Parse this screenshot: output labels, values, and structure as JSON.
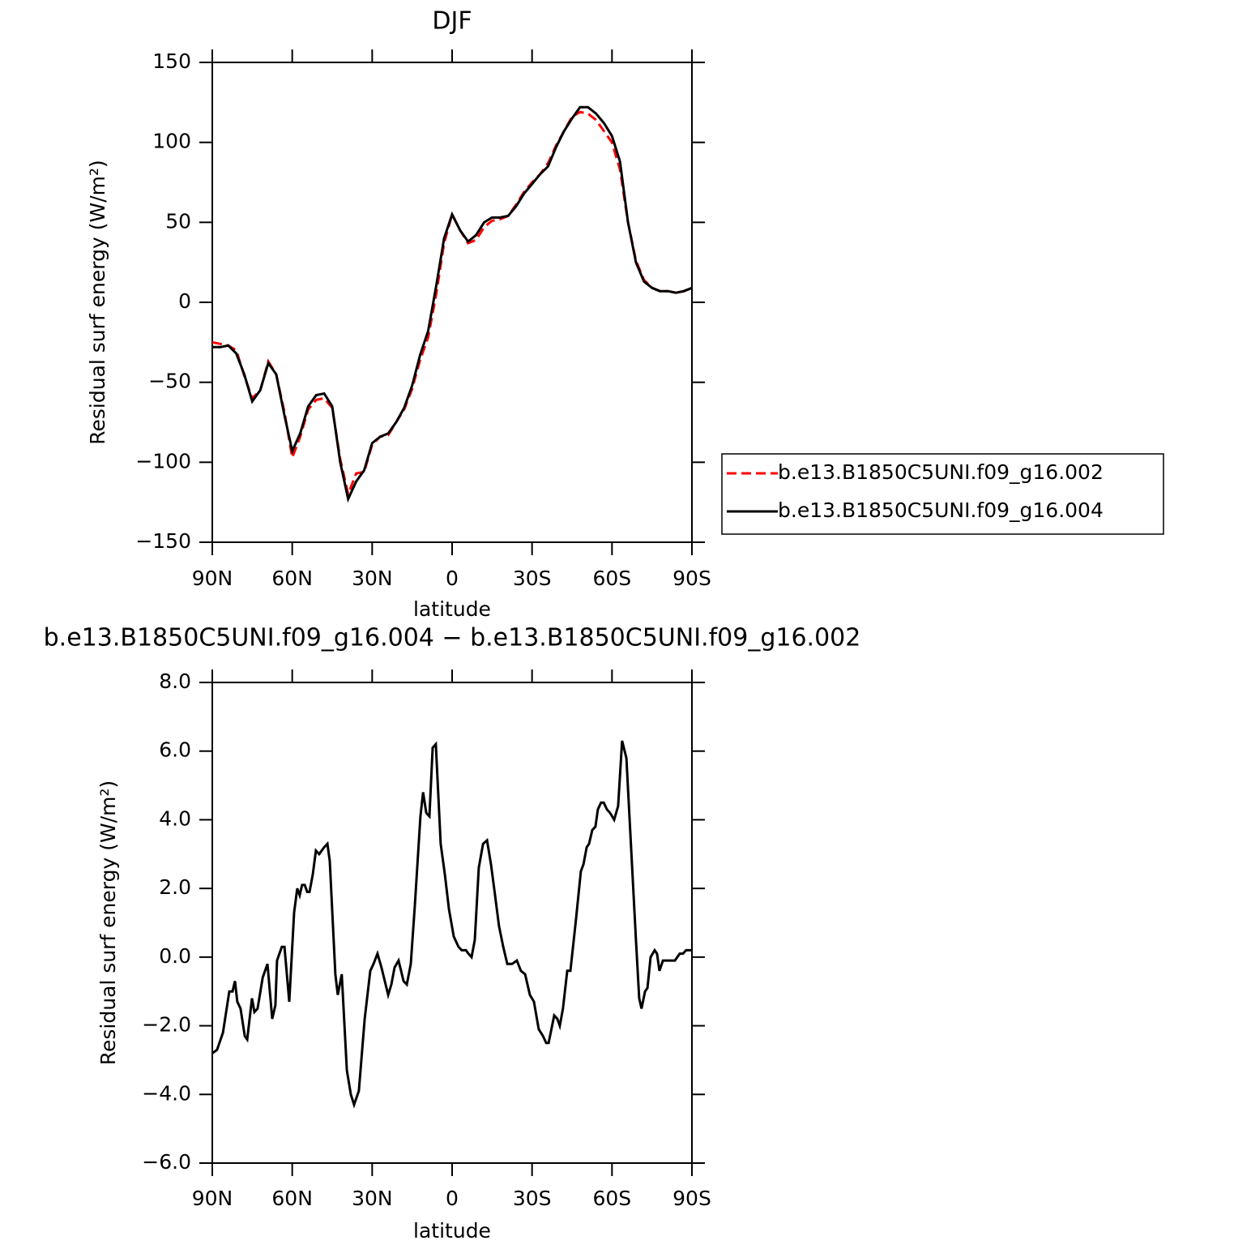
{
  "chart_data": [
    {
      "type": "line",
      "title": "DJF",
      "xlabel": "latitude",
      "ylabel": "Residual surf energy (W/m²)",
      "xlim": [
        90,
        -90
      ],
      "xticks": [
        {
          "value": 90,
          "label": "90N"
        },
        {
          "value": 60,
          "label": "60N"
        },
        {
          "value": 30,
          "label": "30N"
        },
        0,
        {
          "value": -30,
          "label": "30S"
        },
        {
          "value": -60,
          "label": "60S"
        },
        {
          "value": -90,
          "label": "90S"
        }
      ],
      "ylim": [
        -150,
        150
      ],
      "yticks": [
        {
          "value": -150,
          "label": "−150"
        },
        {
          "value": -100,
          "label": "−100"
        },
        {
          "value": -50,
          "label": "−50"
        },
        0,
        50,
        100,
        150
      ],
      "legend": "right",
      "x": [
        90,
        87,
        84,
        81,
        78,
        75,
        72,
        69,
        66,
        63,
        60,
        57,
        54,
        51,
        48,
        45,
        42,
        39,
        36,
        33,
        30,
        27,
        24,
        21,
        18,
        15,
        12,
        9,
        6,
        3,
        0,
        -3,
        -6,
        -9,
        -12,
        -15,
        -18,
        -21,
        -24,
        -27,
        -30,
        -33,
        -36,
        -39,
        -42,
        -45,
        -48,
        -51,
        -54,
        -57,
        -60,
        -63,
        -66,
        -69,
        -72,
        -75,
        -78,
        -81,
        -84,
        -87,
        -90
      ],
      "series": [
        {
          "name": "b.e13.B1850C5UNI.f09_g16.002",
          "color": "#ff0000",
          "linestyle": "dashed",
          "values": [
            -25,
            -26,
            -27,
            -30,
            -46,
            -60,
            -55,
            -37,
            -45,
            -68,
            -97,
            -84,
            -67,
            -61,
            -60,
            -66,
            -98,
            -120,
            -107,
            -106,
            -89,
            -84,
            -83,
            -75,
            -67,
            -54,
            -36,
            -22,
            5,
            37,
            55,
            45,
            37,
            39,
            47,
            51,
            52,
            54,
            61,
            69,
            75,
            80,
            87,
            98,
            107,
            116,
            119,
            118,
            114,
            107,
            100,
            83,
            50,
            26,
            14,
            9,
            7,
            7,
            6,
            7,
            9
          ]
        },
        {
          "name": "b.e13.B1850C5UNI.f09_g16.004",
          "color": "#000000",
          "linestyle": "solid",
          "values": [
            -28,
            -28,
            -27,
            -32,
            -45,
            -62,
            -55,
            -38,
            -45,
            -70,
            -93,
            -82,
            -65,
            -58,
            -57,
            -65,
            -100,
            -123,
            -112,
            -105,
            -88,
            -84,
            -82,
            -75,
            -66,
            -52,
            -33,
            -18,
            10,
            40,
            55,
            45,
            38,
            42,
            50,
            53,
            53,
            54,
            60,
            68,
            74,
            80,
            85,
            97,
            107,
            115,
            122,
            122,
            118,
            112,
            104,
            88,
            50,
            25,
            13,
            9,
            7,
            7,
            6,
            7,
            9
          ]
        }
      ]
    },
    {
      "type": "line",
      "title": "b.e13.B1850C5UNI.f09_g16.004 − b.e13.B1850C5UNI.f09_g16.002",
      "xlabel": "latitude",
      "ylabel": "Residual surf energy (W/m²)",
      "xlim": [
        90,
        -90
      ],
      "xticks": [
        {
          "value": 90,
          "label": "90N"
        },
        {
          "value": 60,
          "label": "60N"
        },
        {
          "value": 30,
          "label": "30N"
        },
        0,
        {
          "value": -30,
          "label": "30S"
        },
        {
          "value": -60,
          "label": "60S"
        },
        {
          "value": -90,
          "label": "90S"
        }
      ],
      "ylim": [
        -6,
        8
      ],
      "yticks": [
        {
          "value": -6,
          "label": "−6.0"
        },
        {
          "value": -4,
          "label": "−4.0"
        },
        {
          "value": -2,
          "label": "−2.0"
        },
        {
          "value": 0,
          "label": "0.0"
        },
        {
          "value": 2,
          "label": "2.0"
        },
        {
          "value": 4,
          "label": "4.0"
        },
        {
          "value": 6,
          "label": "6.0"
        },
        {
          "value": 8,
          "label": "8.0"
        }
      ],
      "color": "#000000",
      "x": [
        90,
        88.2,
        86.0,
        83.6,
        82.4,
        81.5,
        80.6,
        79.4,
        77.8,
        76.9,
        75.1,
        74.2,
        73.0,
        71.1,
        69.3,
        67.5,
        66.3,
        65.7,
        63.9,
        62.9,
        61.1,
        59.3,
        58.1,
        57.2,
        56.3,
        55.3,
        54.4,
        53.5,
        52.3,
        51.1,
        49.9,
        48.0,
        46.8,
        45.9,
        43.8,
        42.9,
        41.4,
        39.5,
        38.0,
        36.8,
        35.0,
        32.8,
        30.7,
        29.5,
        28.0,
        26.5,
        24.0,
        22.8,
        21.6,
        20.1,
        18.2,
        17.0,
        15.5,
        14.0,
        11.9,
        10.9,
        9.7,
        8.5,
        7.3,
        6.1,
        4.3,
        2.7,
        1.2,
        -0.6,
        -2.4,
        -3.6,
        -5.2,
        -6.1,
        -7.3,
        -8.5,
        -10.0,
        -11.6,
        -13.1,
        -14.6,
        -16.1,
        -17.6,
        -19.2,
        -20.7,
        -22.5,
        -24.3,
        -25.8,
        -27.4,
        -29.2,
        -30.7,
        -32.5,
        -34.1,
        -35.3,
        -36.2,
        -38.3,
        -39.5,
        -40.4,
        -41.6,
        -43.2,
        -44.4,
        -46.5,
        -48.3,
        -49.3,
        -50.5,
        -51.4,
        -52.6,
        -53.8,
        -54.7,
        -55.9,
        -56.9,
        -58.1,
        -59.3,
        -60.8,
        -62.3,
        -63.8,
        -65.4,
        -67.5,
        -69.0,
        -70.2,
        -71.1,
        -72.4,
        -73.3,
        -74.5,
        -76.0,
        -76.9,
        -77.8,
        -79.1,
        -80.3,
        -81.8,
        -83.6,
        -85.4,
        -86.6,
        -87.8,
        -89.0,
        -90
      ],
      "values": [
        -2.8,
        -2.7,
        -2.2,
        -1.0,
        -1.0,
        -0.7,
        -1.3,
        -1.5,
        -2.3,
        -2.4,
        -1.2,
        -1.6,
        -1.5,
        -0.6,
        -0.2,
        -1.8,
        -1.4,
        -0.1,
        0.3,
        0.3,
        -1.3,
        1.3,
        2.0,
        1.8,
        2.1,
        2.1,
        1.9,
        1.9,
        2.4,
        3.1,
        3.0,
        3.2,
        3.3,
        2.8,
        -0.5,
        -1.1,
        -0.5,
        -3.3,
        -4.0,
        -4.3,
        -3.9,
        -1.8,
        -0.4,
        -0.2,
        0.1,
        -0.3,
        -1.1,
        -0.8,
        -0.3,
        -0.1,
        -0.7,
        -0.8,
        -0.2,
        1.5,
        4.1,
        4.8,
        4.2,
        4.1,
        6.1,
        6.2,
        3.3,
        2.4,
        1.4,
        0.6,
        0.3,
        0.2,
        0.2,
        0.1,
        0.0,
        0.5,
        2.6,
        3.3,
        3.4,
        2.7,
        1.8,
        0.9,
        0.3,
        -0.2,
        -0.2,
        -0.1,
        -0.4,
        -0.5,
        -1.1,
        -1.3,
        -2.1,
        -2.3,
        -2.5,
        -2.5,
        -1.7,
        -1.8,
        -2.0,
        -1.5,
        -0.4,
        -0.4,
        1.1,
        2.5,
        2.7,
        3.2,
        3.3,
        3.7,
        3.8,
        4.3,
        4.5,
        4.5,
        4.3,
        4.2,
        4.0,
        4.4,
        6.3,
        5.8,
        2.7,
        0.5,
        -1.2,
        -1.5,
        -1.0,
        -0.9,
        0.0,
        0.2,
        0.1,
        -0.4,
        -0.1,
        -0.1,
        -0.1,
        -0.1,
        0.1,
        0.1,
        0.2,
        0.2,
        0.2
      ]
    }
  ]
}
